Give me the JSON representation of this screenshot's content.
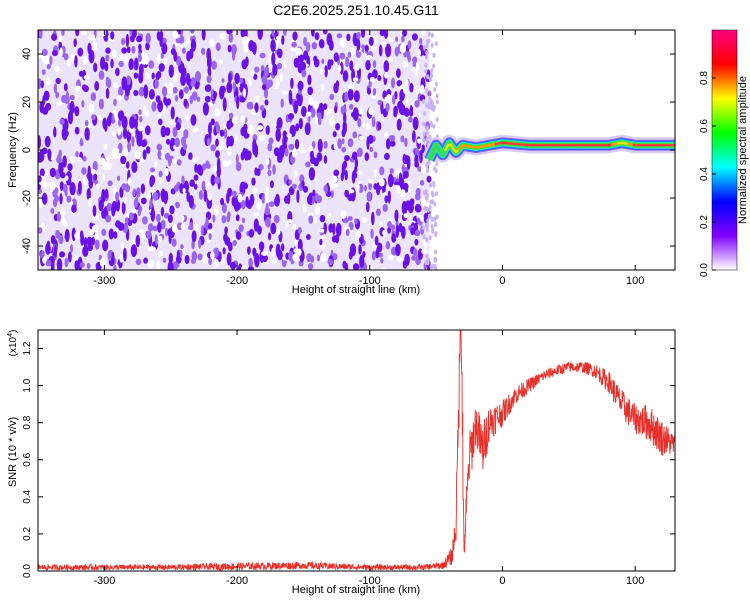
{
  "title": "C2E6.2025.251.10.45.G11",
  "colors": {
    "snr_line": "#e8302a",
    "scatter_core": "#6a12e6",
    "scatter_light": "#c9b3f2",
    "colorbar_stops": [
      "#ffffff",
      "#8000ff",
      "#0000ff",
      "#00ffff",
      "#00ff00",
      "#ffff00",
      "#ff0000",
      "#ff0080"
    ]
  },
  "chart_data": [
    {
      "type": "heatmap",
      "title": "C2E6.2025.251.10.45.G11",
      "xlabel": "Height of straight line (km)",
      "ylabel": "Frequency (Hz)",
      "xlim": [
        -350,
        130
      ],
      "ylim": [
        -50,
        50
      ],
      "x_ticks": [
        -300,
        -200,
        -100,
        0,
        100
      ],
      "x_tick_labels": [
        "-300",
        "-200",
        "-100",
        "0",
        "100"
      ],
      "y_ticks": [
        -40,
        -20,
        0,
        20,
        40
      ],
      "y_tick_labels": [
        "-40",
        "-20",
        "0",
        "20",
        "40"
      ],
      "noise_region_x": [
        -350,
        -55
      ],
      "noise_level": 0.15,
      "trace": {
        "x": [
          -55,
          -50,
          -45,
          -40,
          -35,
          -30,
          -20,
          -10,
          0,
          20,
          50,
          80,
          90,
          100,
          130
        ],
        "freq_hz": [
          -4,
          2,
          -2,
          3,
          -1,
          2,
          1,
          2,
          3,
          2,
          2,
          2,
          3,
          2,
          2
        ],
        "amplitude": [
          0.35,
          0.5,
          0.55,
          0.6,
          0.7,
          0.75,
          0.8,
          0.8,
          0.85,
          0.9,
          0.9,
          0.85,
          0.6,
          0.85,
          0.85
        ]
      },
      "colorbar": {
        "label": "Normalized spectral amplitude",
        "range": [
          0.0,
          1.0
        ],
        "ticks": [
          0.0,
          0.2,
          0.4,
          0.6,
          0.8
        ],
        "tick_labels": [
          "0.0",
          "0.2",
          "0.4",
          "0.6",
          "0.8"
        ]
      }
    },
    {
      "type": "line",
      "xlabel": "Height of straight line (km)",
      "ylabel": "SNR (10 * v/v)",
      "multiplier": "(x10",
      "multiplier_exp": "4",
      "multiplier_close": ")",
      "xlim": [
        -350,
        130
      ],
      "ylim": [
        0,
        1.3
      ],
      "x_ticks": [
        -300,
        -200,
        -100,
        0,
        100
      ],
      "x_tick_labels": [
        "-300",
        "-200",
        "-100",
        "0",
        "100"
      ],
      "y_ticks": [
        0.0,
        0.2,
        0.4,
        0.6,
        0.8,
        1.0,
        1.2
      ],
      "y_tick_labels": [
        "0.0",
        "0.2",
        "0.4",
        "0.6",
        "0.8",
        "1.0",
        "1.2"
      ],
      "series": [
        {
          "x": [
            -350,
            -300,
            -250,
            -200,
            -150,
            -100,
            -60,
            -45,
            -38,
            -35,
            -33,
            -31,
            -30,
            -29,
            -27,
            -25,
            -20,
            -15,
            -10,
            0,
            10,
            20,
            30,
            40,
            50,
            60,
            70,
            80,
            90,
            100,
            110,
            120,
            130
          ],
          "y": [
            0.02,
            0.02,
            0.02,
            0.025,
            0.03,
            0.02,
            0.02,
            0.03,
            0.08,
            0.25,
            0.9,
            1.35,
            0.6,
            0.1,
            0.35,
            0.6,
            0.8,
            0.65,
            0.8,
            0.85,
            0.95,
            1.0,
            1.05,
            1.08,
            1.1,
            1.1,
            1.08,
            1.02,
            0.9,
            0.82,
            0.8,
            0.72,
            0.68
          ],
          "noise": [
            0.015,
            0.015,
            0.015,
            0.02,
            0.02,
            0.015,
            0.015,
            0.02,
            0.05,
            0.1,
            0.2,
            0.2,
            0.2,
            0.05,
            0.15,
            0.15,
            0.12,
            0.15,
            0.1,
            0.07,
            0.05,
            0.04,
            0.03,
            0.03,
            0.03,
            0.03,
            0.04,
            0.06,
            0.08,
            0.08,
            0.1,
            0.1,
            0.06
          ]
        }
      ]
    }
  ]
}
